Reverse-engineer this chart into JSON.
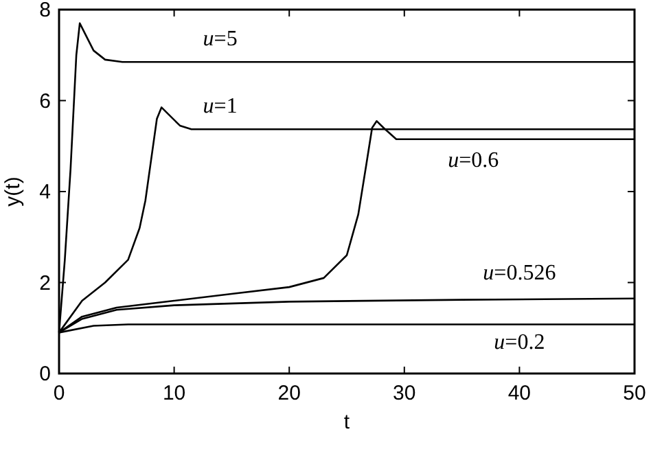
{
  "chart_data": {
    "type": "line",
    "xlabel": "t",
    "ylabel": "y(t)",
    "xlim": [
      0,
      50
    ],
    "ylim": [
      0,
      8
    ],
    "xticks": [
      0,
      10,
      20,
      30,
      40,
      50
    ],
    "yticks": [
      0,
      2,
      4,
      6,
      8
    ],
    "grid": false,
    "line_style": "solid",
    "series": [
      {
        "name": "u=5",
        "color": "#000000",
        "x": [
          0,
          0.5,
          1,
          1.5,
          1.8,
          2.2,
          3,
          4,
          5.5,
          50
        ],
        "values": [
          0.9,
          2.5,
          4.5,
          7.0,
          7.7,
          7.5,
          7.1,
          6.9,
          6.85,
          6.85
        ]
      },
      {
        "name": "u=1",
        "color": "#000000",
        "x": [
          0,
          2,
          4,
          6,
          7,
          7.5,
          8,
          8.5,
          8.9,
          9.5,
          10.5,
          11.5,
          50
        ],
        "values": [
          0.9,
          1.6,
          2.0,
          2.5,
          3.2,
          3.8,
          4.7,
          5.6,
          5.85,
          5.7,
          5.45,
          5.37,
          5.37
        ]
      },
      {
        "name": "u=0.6",
        "color": "#000000",
        "x": [
          0,
          2,
          5,
          10,
          15,
          20,
          23,
          25,
          26,
          26.7,
          27.2,
          27.6,
          28.2,
          29.3,
          50
        ],
        "values": [
          0.9,
          1.25,
          1.45,
          1.6,
          1.75,
          1.9,
          2.1,
          2.6,
          3.5,
          4.6,
          5.4,
          5.55,
          5.4,
          5.15,
          5.15
        ]
      },
      {
        "name": "u=0.526",
        "color": "#000000",
        "x": [
          0,
          2,
          5,
          10,
          20,
          35,
          50
        ],
        "values": [
          0.9,
          1.2,
          1.4,
          1.5,
          1.58,
          1.62,
          1.65
        ]
      },
      {
        "name": "u=0.2",
        "color": "#000000",
        "x": [
          0,
          3,
          6,
          50
        ],
        "values": [
          0.9,
          1.05,
          1.08,
          1.08
        ]
      }
    ]
  }
}
